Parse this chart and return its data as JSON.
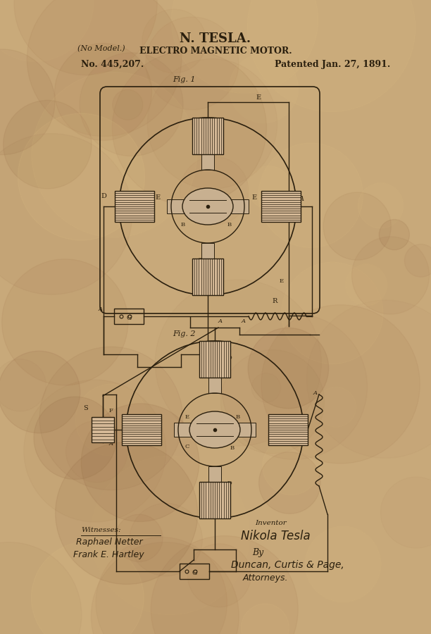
{
  "bg_color": "#c8a97a",
  "ink_color": "#2a1f0e",
  "title_line1": "N. TESLA.",
  "title_line2": "ELECTRO MAGNETIC MOTOR.",
  "no_model": "(No Model.)",
  "patent_no": "No. 445,207.",
  "patent_date": "Patented Jan. 27, 1891.",
  "fig1_label": "Fig. 1",
  "fig2_label": "Fig. 2",
  "witnesses_label": "Witnesses:",
  "witness1": "Raphael Netter",
  "witness2": "Frank E. Hartley",
  "inventor_label": "Inventor",
  "inventor_name": "Nikola Tesla",
  "by_label": "By",
  "attorneys": "Duncan, Curtis & Page,",
  "attorneys2": "Attorneys."
}
